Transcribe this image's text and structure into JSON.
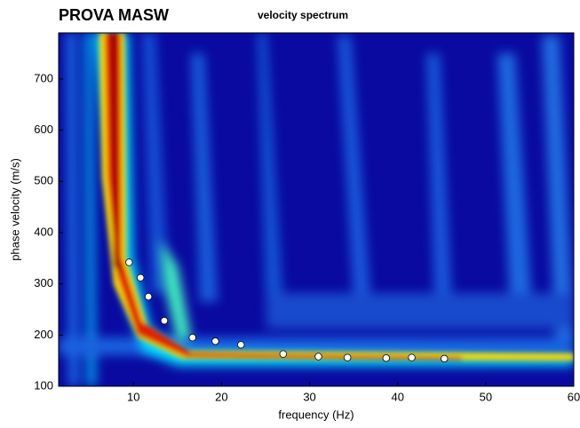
{
  "chart_data": {
    "type": "scatter",
    "title": "PROVA MASW",
    "subtitle": "velocity spectrum",
    "x_label": "frequency (Hz)",
    "y_label": "phase velocity (m/s)",
    "x": [
      9.5,
      10.8,
      11.7,
      13.5,
      16.7,
      19.3,
      22.2,
      27,
      31,
      34.3,
      38.7,
      41.6,
      45.3
    ],
    "values": [
      342,
      312,
      275,
      228,
      195,
      188,
      181,
      163,
      158,
      156,
      155,
      156,
      154
    ],
    "color": "#ffffff",
    "xlim": [
      1.5,
      60
    ],
    "xticks": [
      10,
      20,
      30,
      40,
      50,
      60
    ],
    "ylim": [
      100,
      790
    ],
    "yticks": [
      100,
      200,
      300,
      400,
      500,
      600,
      700
    ]
  }
}
